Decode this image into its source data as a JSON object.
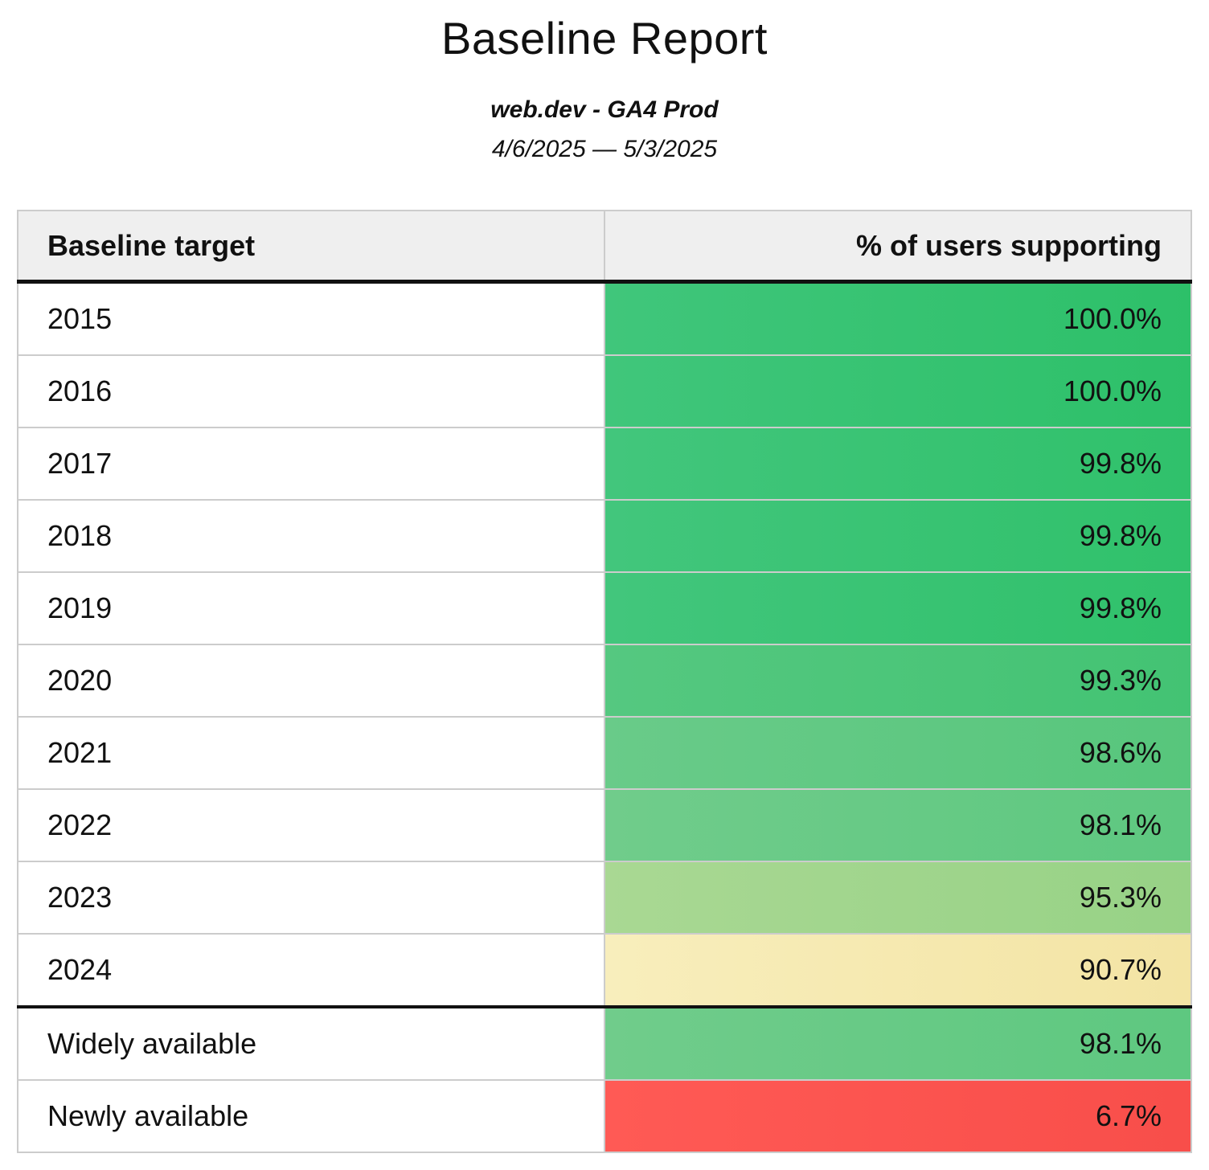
{
  "report": {
    "title": "Baseline Report",
    "subtitle": "web.dev - GA4 Prod",
    "date_range": "4/6/2025 — 5/3/2025"
  },
  "table": {
    "columns": {
      "target": "Baseline target",
      "support": "% of users supporting"
    },
    "rows": [
      {
        "label": "2015",
        "value_display": "100.0%",
        "value": 100.0,
        "color_left": "#40c67b",
        "color_right": "#2dc069",
        "divider_before": false
      },
      {
        "label": "2016",
        "value_display": "100.0%",
        "value": 100.0,
        "color_left": "#40c67b",
        "color_right": "#2dc069",
        "divider_before": false
      },
      {
        "label": "2017",
        "value_display": "99.8%",
        "value": 99.8,
        "color_left": "#42c67c",
        "color_right": "#30c16b",
        "divider_before": false
      },
      {
        "label": "2018",
        "value_display": "99.8%",
        "value": 99.8,
        "color_left": "#42c67c",
        "color_right": "#30c16b",
        "divider_before": false
      },
      {
        "label": "2019",
        "value_display": "99.8%",
        "value": 99.8,
        "color_left": "#42c67c",
        "color_right": "#30c16b",
        "divider_before": false
      },
      {
        "label": "2020",
        "value_display": "99.3%",
        "value": 99.3,
        "color_left": "#55c880",
        "color_right": "#43c373",
        "divider_before": false
      },
      {
        "label": "2021",
        "value_display": "98.6%",
        "value": 98.6,
        "color_left": "#69cb89",
        "color_right": "#57c67c",
        "divider_before": false
      },
      {
        "label": "2022",
        "value_display": "98.1%",
        "value": 98.1,
        "color_left": "#70cc8b",
        "color_right": "#5ec880",
        "divider_before": false
      },
      {
        "label": "2023",
        "value_display": "95.3%",
        "value": 95.3,
        "color_left": "#a9d893",
        "color_right": "#97d286",
        "divider_before": false
      },
      {
        "label": "2024",
        "value_display": "90.7%",
        "value": 90.7,
        "color_left": "#f8eebc",
        "color_right": "#f3e4a4",
        "divider_before": false
      },
      {
        "label": "Widely available",
        "value_display": "98.1%",
        "value": 98.1,
        "color_left": "#70cc8b",
        "color_right": "#5ec880",
        "divider_before": true
      },
      {
        "label": "Newly available",
        "value_display": "6.7%",
        "value": 6.7,
        "color_left": "#ff5a55",
        "color_right": "#f84e4a",
        "divider_before": false
      }
    ]
  },
  "chart_data": {
    "type": "table",
    "title": "Baseline Report",
    "subtitle": "web.dev - GA4 Prod",
    "date_range": "4/6/2025 — 5/3/2025",
    "columns": [
      "Baseline target",
      "% of users supporting"
    ],
    "categories": [
      "2015",
      "2016",
      "2017",
      "2018",
      "2019",
      "2020",
      "2021",
      "2022",
      "2023",
      "2024",
      "Widely available",
      "Newly available"
    ],
    "values": [
      100.0,
      100.0,
      99.8,
      99.8,
      99.8,
      99.3,
      98.6,
      98.1,
      95.3,
      90.7,
      98.1,
      6.7
    ],
    "value_unit": "%",
    "color_encoding": "red-yellow-green heatmap by value (green=high support, yellow=mid, red=low)",
    "legend_position": "none",
    "grid": "row borders only"
  }
}
